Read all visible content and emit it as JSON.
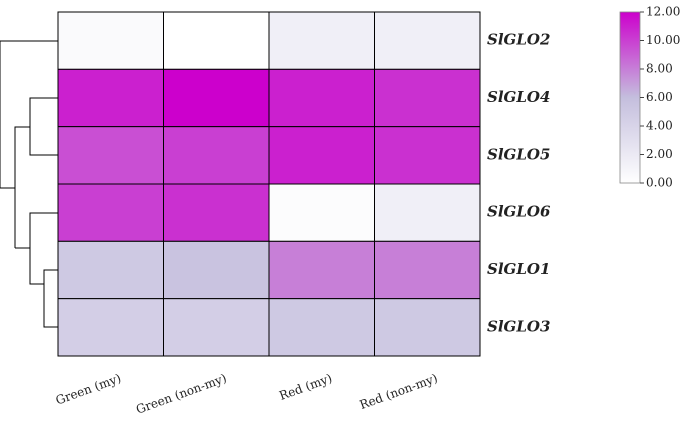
{
  "chart_data": {
    "type": "heatmap",
    "rows": [
      "SlGLO2",
      "SlGLO4",
      "SlGLO5",
      "SlGLO6",
      "SlGLO1",
      "SlGLO3"
    ],
    "categories": [
      "Green (my)",
      "Green (non-my)",
      "Red (my)",
      "Red (non-my)"
    ],
    "values": [
      [
        0.5,
        0,
        1.5,
        1.5
      ],
      [
        11,
        12,
        11,
        10.5
      ],
      [
        9.5,
        10,
        11,
        10.5
      ],
      [
        10,
        10.5,
        0.3,
        1.5
      ],
      [
        5,
        5.5,
        8,
        8
      ],
      [
        4.5,
        4.5,
        5,
        5
      ]
    ],
    "clim": [
      0,
      12
    ],
    "colors": [
      "#ffffff",
      "#c4bedd",
      "#cc00cc"
    ],
    "cticks": [
      {
        "value": 0,
        "label": "0.00"
      },
      {
        "value": 2,
        "label": "2.00"
      },
      {
        "value": 4,
        "label": "4.00"
      },
      {
        "value": 6,
        "label": "6.00"
      },
      {
        "value": 8,
        "label": "8.00"
      },
      {
        "value": 10,
        "label": "10.00"
      },
      {
        "value": 12,
        "label": "12.00"
      }
    ]
  }
}
